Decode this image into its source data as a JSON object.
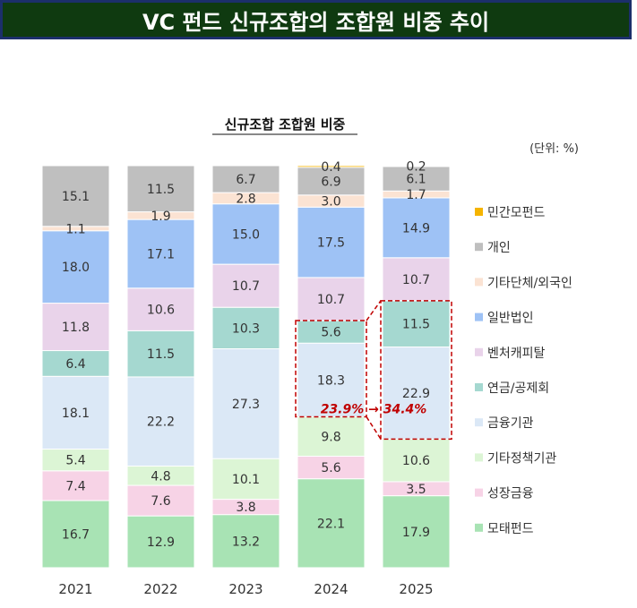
{
  "page_title": "VC 펀드 신규조합의 조합원 비중 추이",
  "chart_data": {
    "type": "bar",
    "stacked": true,
    "normalized_percent": true,
    "subtitle": "신규조합 조합원 비중",
    "unit": "(단위: %)",
    "categories": [
      "2021",
      "2022",
      "2023",
      "2024",
      "2025"
    ],
    "series": [
      {
        "name": "모태펀드",
        "color": "#a8e3b4",
        "values": [
          16.7,
          12.9,
          13.2,
          22.1,
          17.9
        ]
      },
      {
        "name": "성장금융",
        "color": "#f7d3e6",
        "values": [
          7.4,
          7.6,
          3.8,
          5.6,
          3.5
        ]
      },
      {
        "name": "기타정책기관",
        "color": "#dcf5d5",
        "values": [
          5.4,
          4.8,
          10.1,
          9.8,
          10.6
        ]
      },
      {
        "name": "금융기관",
        "color": "#dbe8f6",
        "values": [
          18.1,
          22.2,
          27.3,
          18.3,
          22.9
        ]
      },
      {
        "name": "연금/공제회",
        "color": "#a5d8d0",
        "values": [
          6.4,
          11.5,
          10.3,
          5.6,
          11.5
        ]
      },
      {
        "name": "벤처캐피탈",
        "color": "#e9d3ea",
        "values": [
          11.8,
          10.6,
          10.7,
          10.7,
          10.7
        ]
      },
      {
        "name": "일반법인",
        "color": "#9ec2f5",
        "values": [
          18.0,
          17.1,
          15.0,
          17.5,
          14.9
        ]
      },
      {
        "name": "기타단체/외국인",
        "color": "#fbe3d3",
        "values": [
          1.1,
          1.9,
          2.8,
          3.0,
          1.7
        ]
      },
      {
        "name": "개인",
        "color": "#bfbfbf",
        "values": [
          15.1,
          11.5,
          6.7,
          6.9,
          6.1
        ]
      },
      {
        "name": "민간모펀드",
        "color": "#f5b400",
        "values": [
          null,
          null,
          null,
          0.4,
          0.2
        ]
      }
    ],
    "annotation": {
      "text": "23.9% → 34.4%",
      "color": "#c00000",
      "highlight": [
        {
          "category": "2024",
          "series": [
            "금융기관",
            "연금/공제회"
          ]
        },
        {
          "category": "2025",
          "series": [
            "금융기관",
            "연금/공제회"
          ]
        }
      ]
    },
    "legend_position": "right",
    "grid": false
  }
}
